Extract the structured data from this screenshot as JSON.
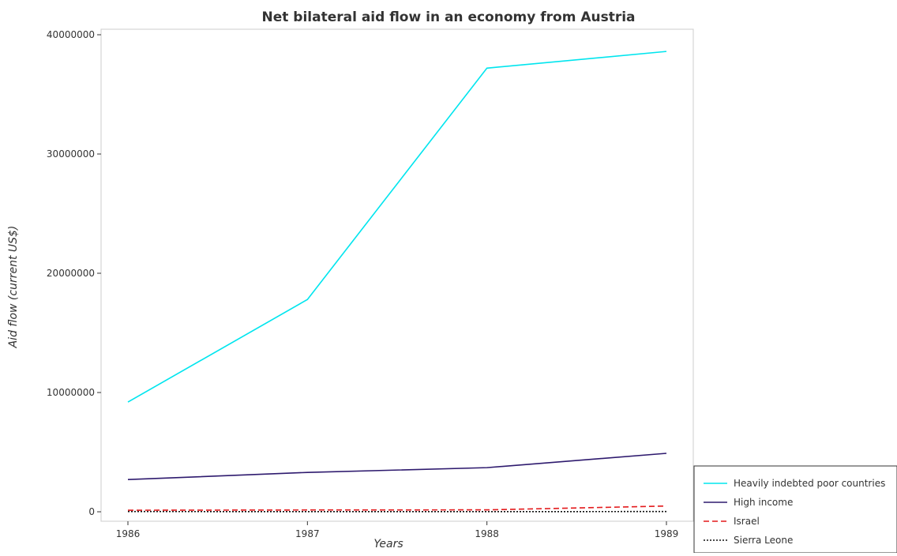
{
  "chart_data": {
    "type": "line",
    "title": "Net bilateral aid flow in an economy from Austria",
    "xlabel": "Years",
    "ylabel": "Aid flow (current US$)",
    "x": [
      "1986",
      "1987",
      "1988",
      "1989"
    ],
    "ylim": [
      0,
      40000000
    ],
    "yticks": [
      0,
      10000000,
      20000000,
      30000000,
      40000000
    ],
    "ytick_labels": [
      "0",
      "10000000",
      "20000000",
      "30000000",
      "40000000"
    ],
    "grid": false,
    "legend_position": "bottom-right",
    "series": [
      {
        "name": "Heavily indebted poor countries",
        "color": "#00e5ee",
        "dash": "solid",
        "values": [
          9200000,
          17800000,
          37200000,
          38600000
        ]
      },
      {
        "name": "High income",
        "color": "#2e1a6e",
        "dash": "solid",
        "values": [
          2700000,
          3300000,
          3700000,
          4900000
        ]
      },
      {
        "name": "Israel",
        "color": "#e31a1c",
        "dash": "dashed",
        "values": [
          130000,
          150000,
          160000,
          480000
        ]
      },
      {
        "name": "Sierra Leone",
        "color": "#111111",
        "dash": "dotted",
        "values": [
          20000,
          10000,
          10000,
          20000
        ]
      }
    ]
  }
}
